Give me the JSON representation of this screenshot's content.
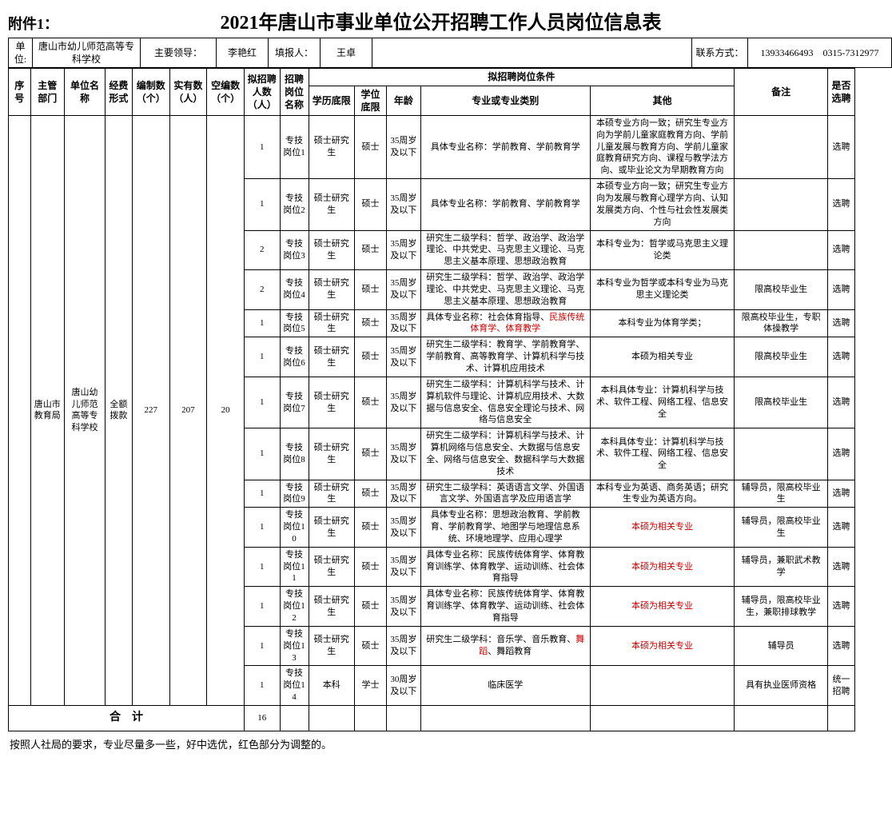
{
  "header": {
    "attach": "附件1：",
    "title": "2021年唐山市事业单位公开招聘工作人员岗位信息表"
  },
  "meta": {
    "unit_label": "单位:",
    "unit": "唐山市幼儿师范高等专科学校",
    "leader_label": "主要领导：",
    "leader": "李艳红",
    "filler_label": "填报人：",
    "filler": "王卓",
    "contact_label": "联系方式：",
    "contact": "13933466493　0315-7312977"
  },
  "columns": {
    "seq": "序号",
    "dept": "主管部门",
    "uname": "单位名称",
    "fund": "经费形式",
    "estab": "编制数（个）",
    "actual": "实有数（人）",
    "vacant": "空编数（个）",
    "plan": "拟招聘人数（人）",
    "pos": "招聘岗位名称",
    "cond_group": "拟招聘岗位条件",
    "edu": "学历底限",
    "deg": "学位底限",
    "age": "年龄",
    "major": "专业或专业类别",
    "other": "其他",
    "remark": "备注",
    "sel": "是否选聘"
  },
  "unit_row": {
    "dept": "唐山市教育局",
    "uname": "唐山幼儿师范高等专科学校",
    "fund": "全额拨款",
    "estab": "227",
    "actual": "207",
    "vacant": "20"
  },
  "rows": [
    {
      "plan": "1",
      "pos": "专技岗位1",
      "edu": "硕士研究生",
      "deg": "硕士",
      "age": "35周岁及以下",
      "major": "具体专业名称：学前教育、学前教育学",
      "other": "本硕专业方向一致；研究生专业方向为学前儿童家庭教育方向、学前儿童发展与教育方向、学前儿童家庭教育研究方向、课程与教学法方向、或毕业论文为早期教育方向",
      "remark": "",
      "sel": "选聘"
    },
    {
      "plan": "1",
      "pos": "专技岗位2",
      "edu": "硕士研究生",
      "deg": "硕士",
      "age": "35周岁及以下",
      "major": "具体专业名称：学前教育、学前教育学",
      "other": "本硕专业方向一致；研究生专业方向为发展与教育心理学方向、认知发展类方向、个性与社会性发展类方向",
      "remark": "",
      "sel": "选聘"
    },
    {
      "plan": "2",
      "pos": "专技岗位3",
      "edu": "硕士研究生",
      "deg": "硕士",
      "age": "35周岁及以下",
      "major": "研究生二级学科：哲学、政治学、政治学理论、中共党史、马克思主义理论、马克思主义基本原理、思想政治教育",
      "other": "本科专业为：哲学或马克思主义理论类",
      "remark": "",
      "sel": "选聘"
    },
    {
      "plan": "2",
      "pos": "专技岗位4",
      "edu": "硕士研究生",
      "deg": "硕士",
      "age": "35周岁及以下",
      "major": "研究生二级学科：哲学、政治学、政治学理论、中共党史、马克思主义理论、马克思主义基本原理、思想政治教育",
      "other": "本科专业为哲学或本科专业为马克思主义理论类",
      "remark": "限高校毕业生",
      "sel": "选聘"
    },
    {
      "plan": "1",
      "pos": "专技岗位5",
      "edu": "硕士研究生",
      "deg": "硕士",
      "age": "35周岁及以下",
      "major_pre": "具体专业名称：社会体育指导、",
      "major_red": "民族传统体育学、体育教学",
      "other": "本科专业为体育学类；",
      "remark": "限高校毕业生，专职体操教学",
      "sel": "选聘"
    },
    {
      "plan": "1",
      "pos": "专技岗位6",
      "edu": "硕士研究生",
      "deg": "硕士",
      "age": "35周岁及以下",
      "major": "研究生二级学科：教育学、学前教育学、学前教育、高等教育学、计算机科学与技术、计算机应用技术",
      "other": "本硕为相关专业",
      "remark": "限高校毕业生",
      "sel": "选聘"
    },
    {
      "plan": "1",
      "pos": "专技岗位7",
      "edu": "硕士研究生",
      "deg": "硕士",
      "age": "35周岁及以下",
      "major": "研究生二级学科：计算机科学与技术、计算机软件与理论、计算机应用技术、大数据与信息安全、信息安全理论与技术、网络与信息安全",
      "other": "本科具体专业：计算机科学与技术、软件工程、网络工程、信息安全",
      "remark": "限高校毕业生",
      "sel": "选聘"
    },
    {
      "plan": "1",
      "pos": "专技岗位8",
      "edu": "硕士研究生",
      "deg": "硕士",
      "age": "35周岁及以下",
      "major": "研究生二级学科：计算机科学与技术、计算机网络与信息安全、大数据与信息安全、网络与信息安全、数据科学与大数据技术",
      "other": "本科具体专业：计算机科学与技术、软件工程、网络工程、信息安全",
      "remark": "",
      "sel": "选聘"
    },
    {
      "plan": "1",
      "pos": "专技岗位9",
      "edu": "硕士研究生",
      "deg": "硕士",
      "age": "35周岁及以下",
      "major": "研究生二级学科：英语语言文学、外国语言文学、外国语言学及应用语言学",
      "other": "本科专业为英语、商务英语；研究生专业为英语方向。",
      "remark": "辅导员，限高校毕业生",
      "sel": "选聘"
    },
    {
      "plan": "1",
      "pos": "专技岗位10",
      "edu": "硕士研究生",
      "deg": "硕士",
      "age": "35周岁及以下",
      "major": "具体专业名称：思想政治教育、学前教育、学前教育学、地图学与地理信息系统、环境地理学、应用心理学",
      "other_red": "本硕为相关专业",
      "remark": "辅导员，限高校毕业生",
      "sel": "选聘"
    },
    {
      "plan": "1",
      "pos": "专技岗位11",
      "edu": "硕士研究生",
      "deg": "硕士",
      "age": "35周岁及以下",
      "major": "具体专业名称：民族传统体育学、体育教育训练学、体育教学、运动训练、社会体育指导",
      "other_red": "本硕为相关专业",
      "remark": "辅导员，兼职武术教学",
      "sel": "选聘"
    },
    {
      "plan": "1",
      "pos": "专技岗位12",
      "edu": "硕士研究生",
      "deg": "硕士",
      "age": "35周岁及以下",
      "major": "具体专业名称：民族传统体育学、体育教育训练学、体育教学、运动训练、社会体育指导",
      "other_red": "本硕为相关专业",
      "remark": "辅导员，限高校毕业生，兼职排球教学",
      "sel": "选聘"
    },
    {
      "plan": "1",
      "pos": "专技岗位13",
      "edu": "硕士研究生",
      "deg": "硕士",
      "age": "35周岁及以下",
      "major_pre": "研究生二级学科：音乐学、音乐教育、",
      "major_red": "舞蹈",
      "major_post": "、舞蹈教育",
      "other_red": "本硕为相关专业",
      "remark": "辅导员",
      "sel": "选聘"
    },
    {
      "plan": "1",
      "pos": "专技岗位14",
      "edu": "本科",
      "deg": "学士",
      "age": "30周岁及以下",
      "major": "临床医学",
      "other": "",
      "remark": "具有执业医师资格",
      "sel": "统一招聘"
    }
  ],
  "total": {
    "label": "合　计",
    "plan": "16"
  },
  "footer": "按照人社局的要求，专业尽量多一些，好中选优，红色部分为调整的。"
}
